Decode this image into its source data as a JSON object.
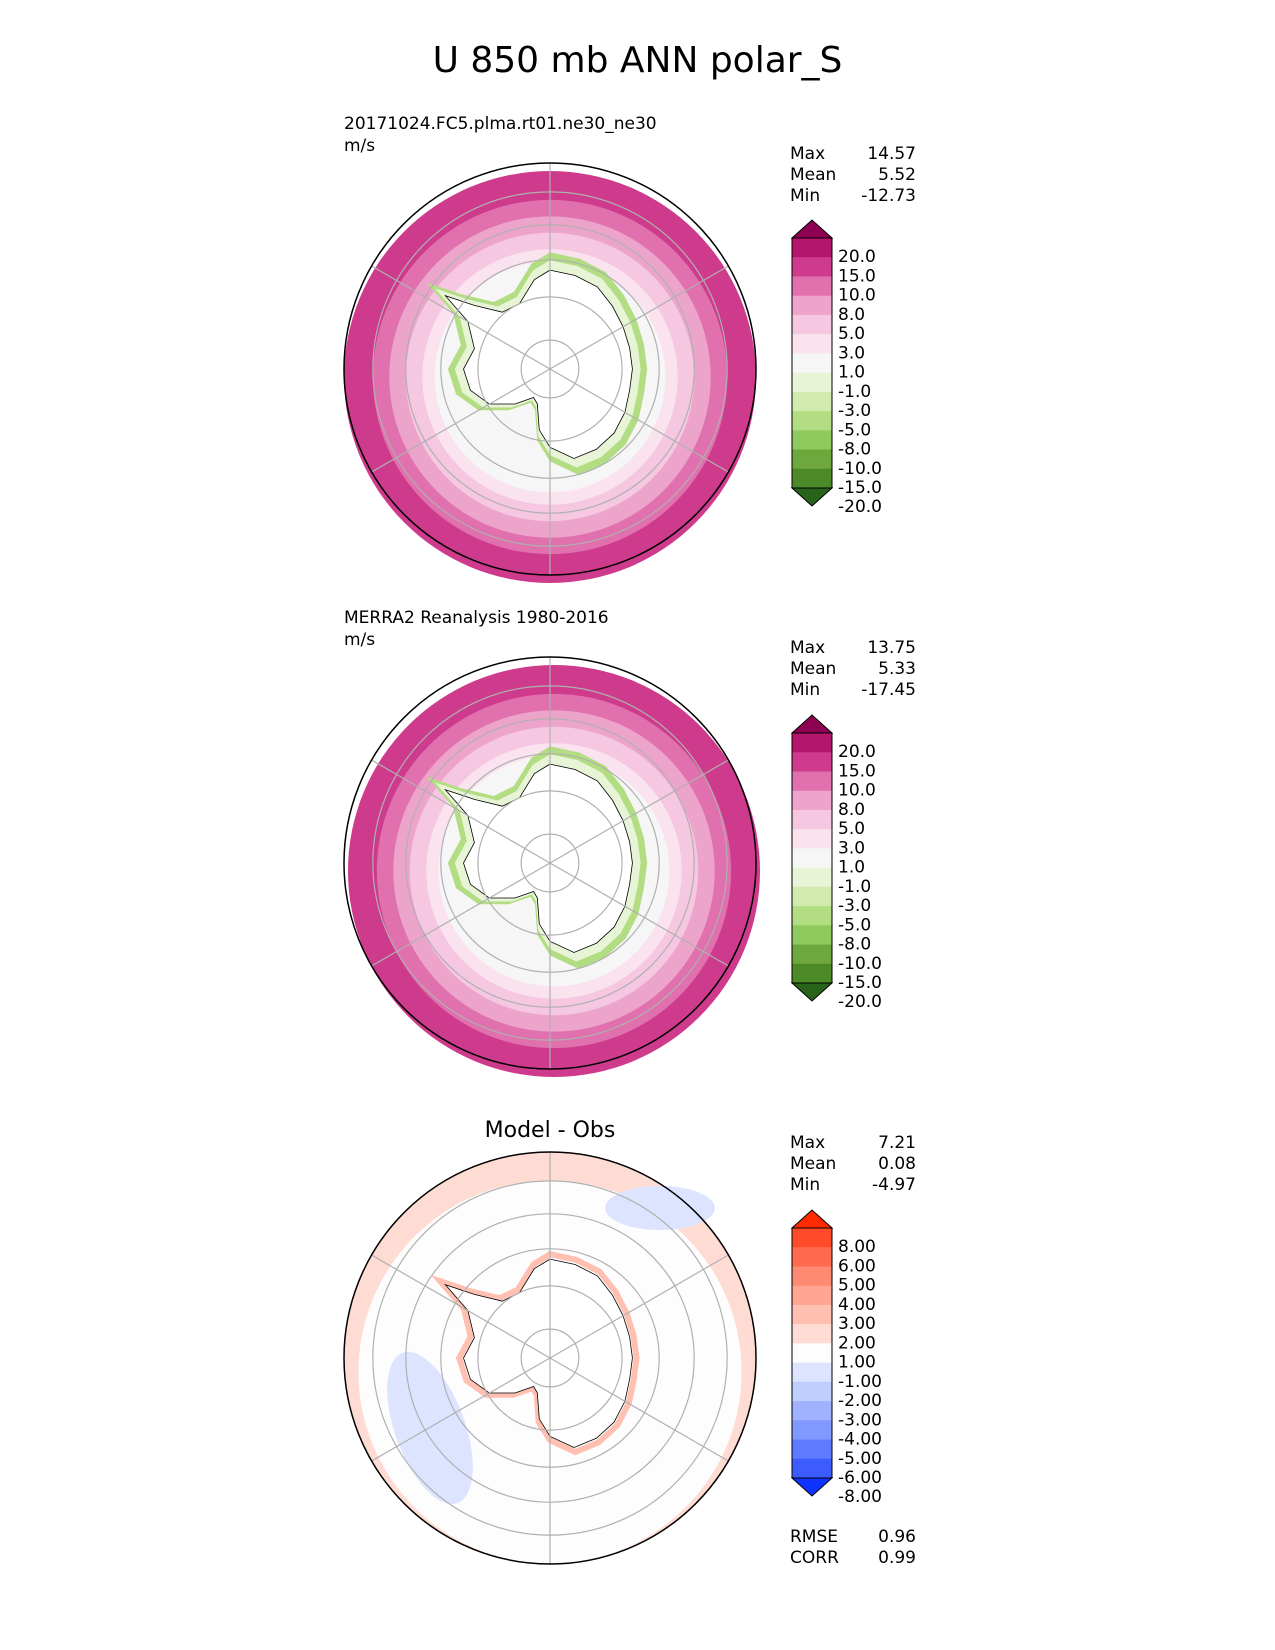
{
  "title": "U 850 mb ANN polar_S",
  "panels": [
    {
      "label_line1": "20171024.FC5.plma.rt01.ne30_ne30",
      "label_line2": "m/s",
      "stats": [
        {
          "k": "Max",
          "v": "14.57"
        },
        {
          "k": "Mean",
          "v": "5.52"
        },
        {
          "k": "Min",
          "v": "-12.73"
        }
      ]
    },
    {
      "label_line1": "MERRA2 Reanalysis 1980-2016",
      "label_line2": "m/s",
      "stats": [
        {
          "k": "Max",
          "v": "13.75"
        },
        {
          "k": "Mean",
          "v": "5.33"
        },
        {
          "k": "Min",
          "v": "-17.45"
        }
      ]
    },
    {
      "title": "Model - Obs",
      "stats": [
        {
          "k": "Max",
          "v": "7.21"
        },
        {
          "k": "Mean",
          "v": "0.08"
        },
        {
          "k": "Min",
          "v": "-4.97"
        }
      ],
      "metrics": [
        {
          "k": "RMSE",
          "v": "0.96"
        },
        {
          "k": "CORR",
          "v": "0.99"
        }
      ]
    }
  ],
  "colorbars": {
    "field": {
      "labels": [
        "20.0",
        "15.0",
        "10.0",
        "8.0",
        "5.0",
        "3.0",
        "1.0",
        "-1.0",
        "-3.0",
        "-5.0",
        "-8.0",
        "-10.0",
        "-15.0",
        "-20.0"
      ],
      "colors": [
        "#8e0152",
        "#b3166a",
        "#ce3b8d",
        "#e070ae",
        "#eda4cb",
        "#f5c7e0",
        "#fae2ee",
        "#f6f6f6",
        "#e8f4d6",
        "#d0ebad",
        "#b3dd82",
        "#90c95c",
        "#6ea73c",
        "#4c8a28",
        "#276419"
      ]
    },
    "diff": {
      "labels": [
        "8.00",
        "6.00",
        "5.00",
        "4.00",
        "3.00",
        "2.00",
        "1.00",
        "-1.00",
        "-2.00",
        "-3.00",
        "-4.00",
        "-5.00",
        "-6.00",
        "-8.00"
      ],
      "colors": [
        "#ff2a00",
        "#ff4b2a",
        "#ff6b4e",
        "#ff8a72",
        "#ffa592",
        "#ffc0b2",
        "#ffdcd3",
        "#fdfdfd",
        "#dde4ff",
        "#bfcdff",
        "#a0b2ff",
        "#8098ff",
        "#607bff",
        "#3d5cff",
        "#1034ff"
      ]
    }
  },
  "chart_data": [
    {
      "type": "heatmap",
      "title": "20171024.FC5.plma.rt01.ne30_ne30",
      "units": "m/s",
      "projection": "south polar stereographic",
      "stats": {
        "max": 14.57,
        "mean": 5.52,
        "min": -12.73
      },
      "levels": [
        -20.0,
        -15.0,
        -10.0,
        -8.0,
        -5.0,
        -3.0,
        -1.0,
        1.0,
        3.0,
        5.0,
        8.0,
        10.0,
        15.0,
        20.0
      ]
    },
    {
      "type": "heatmap",
      "title": "MERRA2 Reanalysis 1980-2016",
      "units": "m/s",
      "projection": "south polar stereographic",
      "stats": {
        "max": 13.75,
        "mean": 5.33,
        "min": -17.45
      },
      "levels": [
        -20.0,
        -15.0,
        -10.0,
        -8.0,
        -5.0,
        -3.0,
        -1.0,
        1.0,
        3.0,
        5.0,
        8.0,
        10.0,
        15.0,
        20.0
      ]
    },
    {
      "type": "heatmap",
      "title": "Model - Obs",
      "projection": "south polar stereographic",
      "stats": {
        "max": 7.21,
        "mean": 0.08,
        "min": -4.97,
        "rmse": 0.96,
        "corr": 0.99
      },
      "levels": [
        -8.0,
        -6.0,
        -5.0,
        -4.0,
        -3.0,
        -2.0,
        -1.0,
        1.0,
        2.0,
        3.0,
        4.0,
        5.0,
        6.0,
        8.0
      ]
    }
  ]
}
